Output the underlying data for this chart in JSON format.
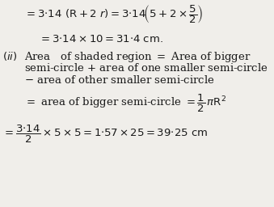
{
  "background_color": "#f0eeea",
  "text_color": "#1a1a1a",
  "fontsize": 9.5
}
